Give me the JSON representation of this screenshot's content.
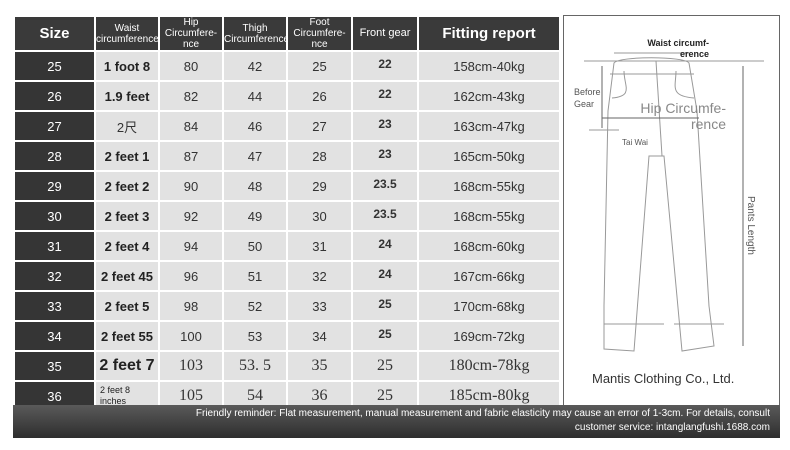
{
  "table": {
    "headers": [
      "Size",
      "Waist circumference",
      "Hip Circumfere-nce",
      "Thigh Circumference",
      "Foot Circumfere-nce",
      "Front gear",
      "Fitting report"
    ],
    "rows": [
      [
        "25",
        "1 foot 8",
        "80",
        "42",
        "25",
        "22",
        "158cm-40kg"
      ],
      [
        "26",
        "1.9 feet",
        "82",
        "44",
        "26",
        "22",
        "162cm-43kg"
      ],
      [
        "27",
        "2尺",
        "84",
        "46",
        "27",
        "23",
        "163cm-47kg"
      ],
      [
        "28",
        "2 feet 1",
        "87",
        "47",
        "28",
        "23",
        "165cm-50kg"
      ],
      [
        "29",
        "2 feet 2",
        "90",
        "48",
        "29",
        "23.5",
        "168cm-55kg"
      ],
      [
        "30",
        "2 feet 3",
        "92",
        "49",
        "30",
        "23.5",
        "168cm-55kg"
      ],
      [
        "31",
        "2 feet 4",
        "94",
        "50",
        "31",
        "24",
        "168cm-60kg"
      ],
      [
        "32",
        "2 feet 45",
        "96",
        "51",
        "32",
        "24",
        "167cm-66kg"
      ],
      [
        "33",
        "2 feet 5",
        "98",
        "52",
        "33",
        "25",
        "170cm-68kg"
      ],
      [
        "34",
        "2 feet 55",
        "100",
        "53",
        "34",
        "25",
        "169cm-72kg"
      ],
      [
        "35",
        "2 feet 7",
        "103",
        "53. 5",
        "35",
        "25",
        "180cm-78kg"
      ],
      [
        "36",
        "2 feet 8 inches",
        "105",
        "54",
        "36",
        "25",
        "185cm-80kg"
      ]
    ]
  },
  "diagram": {
    "waist_label": "Waist circumf-erence",
    "before_gear_label": "Before Gear",
    "hip_label": "Hip Circumfe-rence",
    "tai_wai_label": "Tai Wai",
    "pants_length_label": "Pants Length",
    "company": "Mantis Clothing Co., Ltd."
  },
  "footer": {
    "line1": "Friendly reminder: Flat measurement, manual measurement and fabric elasticity may cause an error of 1-3cm. For details, consult",
    "line2": "customer service: intanglangfushi.1688.com"
  }
}
